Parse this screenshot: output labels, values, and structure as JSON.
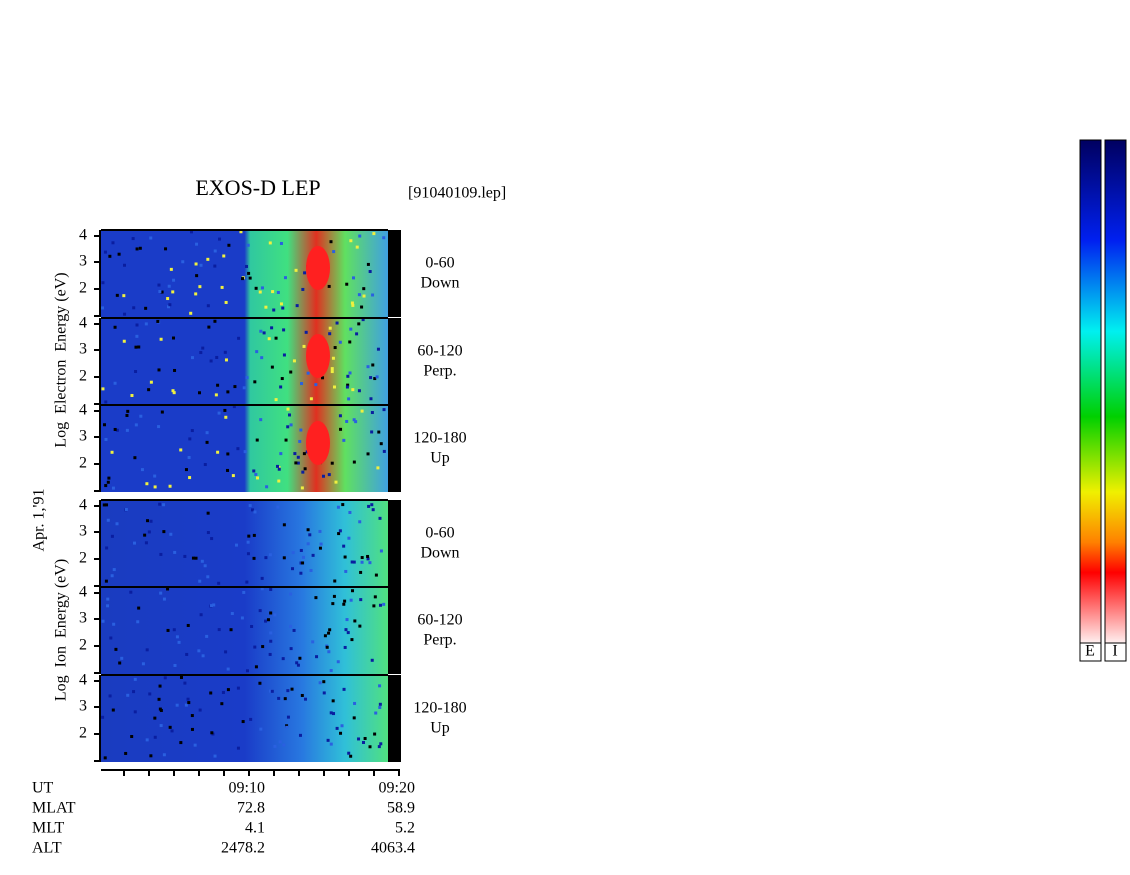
{
  "header": {
    "title": "EXOS-D LEP",
    "file": "[91040109.lep]"
  },
  "date": "Apr. 1,'91",
  "electron_axis_label": "Log  Electron  Energy (eV)",
  "ion_axis_label": "Log  Ion  Energy (eV)",
  "panel_ticks": [
    "2",
    "3",
    "4"
  ],
  "panels": [
    {
      "range": "0-60",
      "direction": "Down"
    },
    {
      "range": "60-120",
      "direction": "Perp."
    },
    {
      "range": "120-180",
      "direction": "Up"
    }
  ],
  "time_ticks": [
    "09:10",
    "09:20"
  ],
  "rows": [
    {
      "label": "UT"
    },
    {
      "label": "MLAT",
      "values": [
        "72.8",
        "58.9"
      ]
    },
    {
      "label": "MLT",
      "values": [
        "4.1",
        "5.2"
      ]
    },
    {
      "label": "ALT",
      "values": [
        "2478.2",
        "4063.4"
      ]
    }
  ],
  "colorbars": [
    "E",
    "I"
  ]
}
